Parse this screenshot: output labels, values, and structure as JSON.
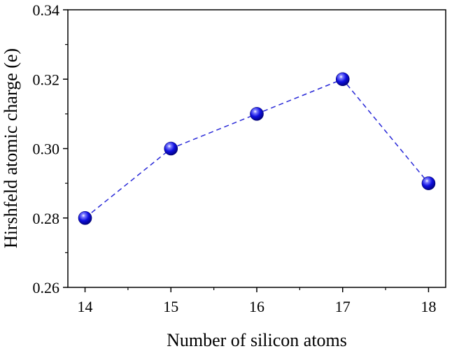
{
  "chart_data": {
    "type": "line",
    "title": "",
    "xlabel": "Number of silicon atoms",
    "ylabel": "Hirshfeld atomic charge (e)",
    "x": [
      14,
      15,
      16,
      17,
      18
    ],
    "series": [
      {
        "values": [
          0.28,
          0.3,
          0.31,
          0.32,
          0.29
        ]
      }
    ],
    "xlim": [
      13.8,
      18.2
    ],
    "ylim": [
      0.26,
      0.34
    ],
    "xticks": [
      "14",
      "15",
      "16",
      "17",
      "18"
    ],
    "yticks": [
      "0.26",
      "0.28",
      "0.30",
      "0.32",
      "0.34"
    ],
    "line_style": "dashed",
    "marker": "sphere",
    "color": "#1f1fd6",
    "grid": false,
    "legend": "none"
  }
}
